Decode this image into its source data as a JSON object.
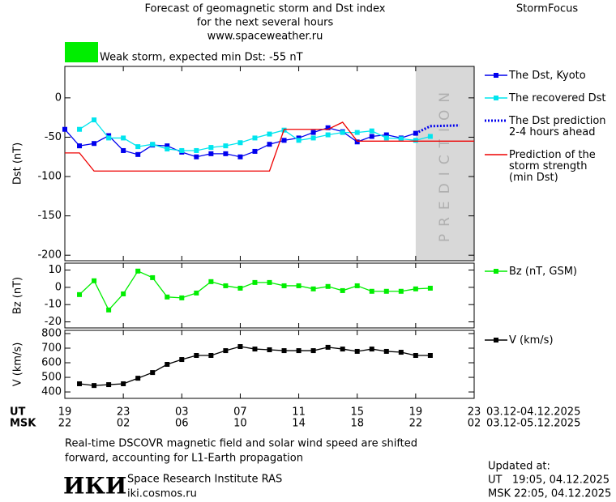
{
  "header": {
    "title_lines": [
      "Forecast of geomagnetic storm and Dst index",
      "for the next several hours",
      "www.spaceweather.ru"
    ],
    "brand": "StormFocus",
    "storm_label": "Weak storm, expected min Dst: -55 nT",
    "storm_color": "#00ee00"
  },
  "chart_data": [
    {
      "type": "line",
      "y_label": "Dst (nT)",
      "xlim": [
        0,
        28
      ],
      "ylim": [
        -207,
        40
      ],
      "yticks": [
        0,
        -50,
        -100,
        -150,
        -200
      ],
      "shade": {
        "xlim": [
          24,
          28
        ],
        "label": "PREDICTION",
        "color": "#d8d8d8"
      },
      "series": [
        {
          "name": "The Dst, Kyoto",
          "color": "#0000ee",
          "marker": "square",
          "x": [
            0,
            1,
            2,
            3,
            4,
            5,
            6,
            7,
            8,
            9,
            10,
            11,
            12,
            13,
            14,
            15,
            16,
            17,
            18,
            19,
            20,
            21,
            22,
            23,
            24
          ],
          "values": [
            -40,
            -61,
            -58,
            -48,
            -67,
            -72,
            -60,
            -61,
            -69,
            -75,
            -71,
            -71,
            -75,
            -68,
            -59,
            -54,
            -51,
            -44,
            -38,
            -43,
            -56,
            -49,
            -47,
            -51,
            -45
          ]
        },
        {
          "name": "The recovered Dst",
          "color": "#00e5ee",
          "marker": "square",
          "x": [
            1,
            2,
            3,
            4,
            5,
            6,
            7,
            8,
            9,
            10,
            11,
            12,
            13,
            14,
            15,
            16,
            17,
            18,
            19,
            20,
            21,
            22,
            23,
            24,
            25
          ],
          "values": [
            -40,
            -28,
            -51,
            -51,
            -62,
            -59,
            -65,
            -67,
            -67,
            -63,
            -61,
            -57,
            -51,
            -46,
            -41,
            -54,
            -51,
            -47,
            -44,
            -44,
            -42,
            -51,
            -52,
            -54,
            -49
          ]
        },
        {
          "name": "The Dst prediction\n2-4 hours ahead",
          "color": "#0000ee",
          "marker": "none",
          "dash": true,
          "x": [
            24,
            25,
            27
          ],
          "values": [
            -45,
            -36,
            -35
          ]
        },
        {
          "name": "Prediction of the\nstorm strength\n(min Dst)",
          "color": "#ee0000",
          "marker": "none",
          "x": [
            0,
            1,
            2,
            14,
            15,
            18,
            19,
            20,
            28
          ],
          "values": [
            -70,
            -70,
            -93,
            -93,
            -40,
            -40,
            -31,
            -55,
            -55
          ]
        }
      ]
    },
    {
      "type": "line",
      "y_label": "Bz (nT)",
      "xlim": [
        0,
        28
      ],
      "ylim": [
        -23.5,
        14
      ],
      "yticks": [
        10,
        0,
        -10,
        -20
      ],
      "series": [
        {
          "name": "Bz (nT, GSM)",
          "color": "#00ee00",
          "marker": "square",
          "x": [
            1,
            2,
            3,
            4,
            5,
            6,
            7,
            8,
            9,
            10,
            11,
            12,
            13,
            14,
            15,
            16,
            17,
            18,
            19,
            20,
            21,
            22,
            23,
            24,
            25
          ],
          "values": [
            -4.2,
            3.8,
            -13.1,
            -3.8,
            9.4,
            5.6,
            -5.6,
            -6.1,
            -3.3,
            3.3,
            0.9,
            -0.5,
            2.8,
            2.8,
            0.9,
            0.9,
            -0.9,
            0.5,
            -1.9,
            0.9,
            -2.3,
            -2.3,
            -2.3,
            -0.9,
            -0.5
          ]
        }
      ]
    },
    {
      "type": "line",
      "y_label": "V (km/s)",
      "xlim": [
        0,
        28
      ],
      "ylim": [
        356,
        822
      ],
      "yticks": [
        800,
        700,
        600,
        500,
        400
      ],
      "xticks": [
        {
          "value": 0,
          "label": "19"
        },
        {
          "value": 4,
          "label": "23"
        },
        {
          "value": 8,
          "label": "03"
        },
        {
          "value": 12,
          "label": "07"
        },
        {
          "value": 16,
          "label": "11"
        },
        {
          "value": 20,
          "label": "15"
        },
        {
          "value": 24,
          "label": "19"
        },
        {
          "value": 28,
          "label": "23"
        }
      ],
      "xticks_msk": [
        {
          "value": 0,
          "label": "22"
        },
        {
          "value": 4,
          "label": "02"
        },
        {
          "value": 8,
          "label": "06"
        },
        {
          "value": 12,
          "label": "10"
        },
        {
          "value": 16,
          "label": "14"
        },
        {
          "value": 20,
          "label": "18"
        },
        {
          "value": 24,
          "label": "22"
        },
        {
          "value": 28,
          "label": "02"
        }
      ],
      "x_row_labels": [
        "UT",
        "MSK"
      ],
      "date_range_ut": "03.12-04.12.2025",
      "date_range_msk": "03.12-05.12.2025",
      "series": [
        {
          "name": "V (km/s)",
          "color": "#000000",
          "marker": "square",
          "x": [
            1,
            2,
            3,
            4,
            5,
            6,
            7,
            8,
            9,
            10,
            11,
            12,
            13,
            14,
            15,
            16,
            17,
            18,
            19,
            20,
            21,
            22,
            23,
            24,
            25
          ],
          "values": [
            456,
            444,
            450,
            456,
            494,
            533,
            589,
            622,
            650,
            650,
            683,
            711,
            694,
            689,
            683,
            683,
            683,
            706,
            694,
            678,
            694,
            678,
            672,
            650,
            650
          ]
        }
      ]
    }
  ],
  "footer": {
    "note_lines": [
      "Real-time DSCOVR magnetic field and solar wind speed are shifted",
      "forward, accounting for L1-Earth propagation"
    ],
    "logo": "ИКИ",
    "institute": "Space Research Institute RAS",
    "site": "iki.cosmos.ru",
    "updated_title": "Updated at:",
    "updated_ut": "UT   19:05, 04.12.2025",
    "updated_msk": "MSK 22:05, 04.12.2025"
  }
}
